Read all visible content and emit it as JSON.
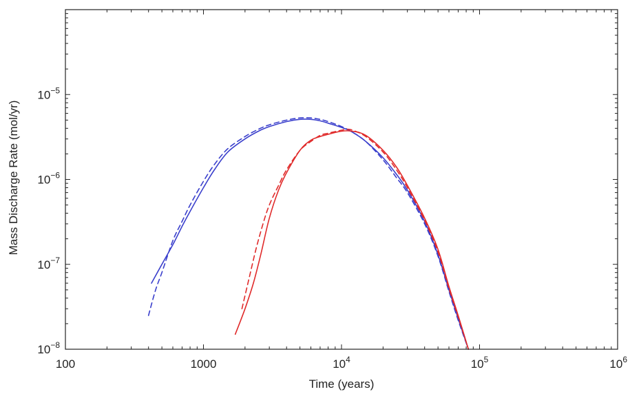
{
  "chart_data": {
    "type": "line",
    "title": "",
    "xlabel": "Time (years)",
    "ylabel": "Mass Discharge Rate (mol/yr)",
    "x_scale": "log",
    "y_scale": "log",
    "xlim": [
      100,
      1000000
    ],
    "ylim": [
      1e-08,
      0.0001
    ],
    "grid": false,
    "legend": "none",
    "x_tick_labels": [
      {
        "value": 100,
        "base": "100",
        "exp": ""
      },
      {
        "value": 1000,
        "base": "1000",
        "exp": ""
      },
      {
        "value": 10000,
        "base": "10",
        "exp": "4"
      },
      {
        "value": 100000,
        "base": "10",
        "exp": "5"
      },
      {
        "value": 1000000,
        "base": "10",
        "exp": "6"
      }
    ],
    "y_tick_labels": [
      {
        "value": 1e-08,
        "base": "10",
        "exp": "−8"
      },
      {
        "value": 1e-07,
        "base": "10",
        "exp": "−7"
      },
      {
        "value": 1e-06,
        "base": "10",
        "exp": "−6"
      },
      {
        "value": 1e-05,
        "base": "10",
        "exp": "−5"
      }
    ],
    "series": [
      {
        "color": "#3a3fcc",
        "dash": "solid",
        "x": [
          420,
          500,
          600,
          700,
          800,
          1000,
          1200,
          1500,
          2000,
          2500,
          3000,
          4000,
          5000,
          6000,
          7000,
          8000,
          10000,
          12000,
          15000,
          20000,
          25000,
          30000,
          40000,
          50000,
          60000,
          70000,
          83000
        ],
        "y": [
          6e-08,
          1e-07,
          1.7e-07,
          2.8e-07,
          4.2e-07,
          8e-07,
          1.3e-06,
          2.1e-06,
          3e-06,
          3.7e-06,
          4.2e-06,
          4.8e-06,
          5.1e-06,
          5.1e-06,
          4.9e-06,
          4.6e-06,
          4.1e-06,
          3.6e-06,
          2.8e-06,
          1.8e-06,
          1.15e-06,
          7.5e-07,
          3.2e-07,
          1.3e-07,
          5e-08,
          2.3e-08,
          1e-08
        ]
      },
      {
        "color": "#3a3fcc",
        "dash": "dashed",
        "x": [
          400,
          450,
          500,
          600,
          700,
          800,
          1000,
          1200,
          1500,
          2000,
          2500,
          3000,
          4000,
          5000,
          6000,
          7000,
          8000,
          10000,
          12000,
          15000,
          20000,
          25000,
          30000,
          40000,
          50000,
          60000,
          70000,
          83000
        ],
        "y": [
          2.5e-08,
          5e-08,
          8e-08,
          1.9e-07,
          3.2e-07,
          5e-07,
          9.5e-07,
          1.5e-06,
          2.3e-06,
          3.2e-06,
          3.9e-06,
          4.4e-06,
          5e-06,
          5.3e-06,
          5.3e-06,
          5.1e-06,
          4.8e-06,
          4.2e-06,
          3.6e-06,
          2.8e-06,
          1.7e-06,
          1.05e-06,
          7e-07,
          3e-07,
          1.25e-07,
          4.8e-08,
          2.2e-08,
          1e-08
        ]
      },
      {
        "color": "#e02a2a",
        "dash": "solid",
        "x": [
          1700,
          2000,
          2300,
          2600,
          3000,
          3500,
          4000,
          5000,
          6000,
          7000,
          8000,
          10000,
          12000,
          15000,
          20000,
          25000,
          30000,
          40000,
          50000,
          60000,
          70000,
          83000
        ],
        "y": [
          1.5e-08,
          3e-08,
          6e-08,
          1.3e-07,
          3.5e-07,
          7.5e-07,
          1.2e-06,
          2.2e-06,
          2.9e-06,
          3.2e-06,
          3.4e-06,
          3.7e-06,
          3.7e-06,
          3.3e-06,
          2.2e-06,
          1.4e-06,
          8.5e-07,
          3.5e-07,
          1.5e-07,
          5.5e-08,
          2.5e-08,
          1e-08
        ]
      },
      {
        "color": "#e02a2a",
        "dash": "dashed",
        "x": [
          1900,
          2100,
          2400,
          2700,
          3000,
          3500,
          4000,
          5000,
          6000,
          7000,
          8000,
          10000,
          11000,
          12000,
          15000,
          20000,
          25000,
          30000,
          40000,
          50000,
          60000,
          70000,
          83000
        ],
        "y": [
          3e-08,
          6e-08,
          1.5e-07,
          3e-07,
          5e-07,
          8.5e-07,
          1.3e-06,
          2.2e-06,
          2.8e-06,
          3.3e-06,
          3.5e-06,
          3.8e-06,
          3.9e-06,
          3.8e-06,
          3.2e-06,
          2.1e-06,
          1.3e-06,
          8e-07,
          3.3e-07,
          1.4e-07,
          5.2e-08,
          2.4e-08,
          1e-08
        ]
      }
    ]
  }
}
